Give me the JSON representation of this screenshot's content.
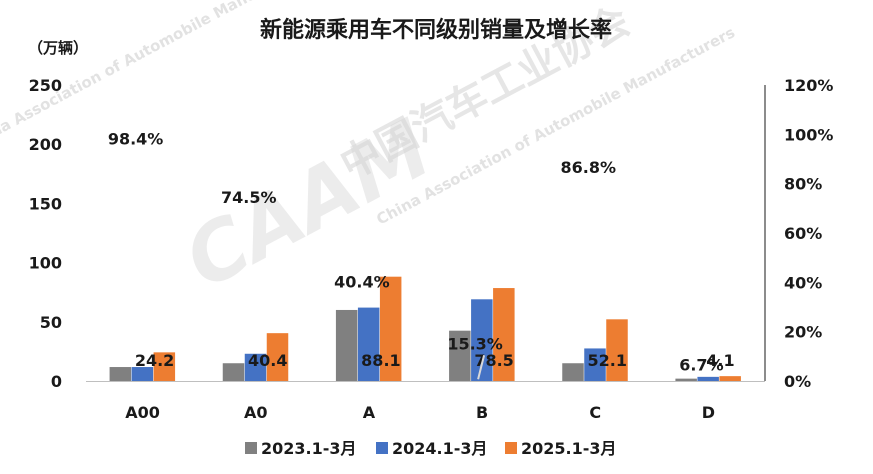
{
  "chart_data": {
    "type": "bar",
    "title": "新能源乘用车不同级别销量及增长率",
    "y_unit": "（万辆）",
    "categories": [
      "A00",
      "A0",
      "A",
      "B",
      "C",
      "D"
    ],
    "series": [
      {
        "name": "2023.1-3月",
        "color": "#808080",
        "values": [
          11.8,
          15.0,
          60.0,
          42.5,
          15.0,
          2.0
        ]
      },
      {
        "name": "2024.1-3月",
        "color": "#4472C4",
        "values": [
          11.8,
          23.0,
          62.0,
          69.0,
          27.5,
          3.5
        ]
      },
      {
        "name": "2025.1-3月",
        "color": "#ED7D31",
        "values": [
          24.2,
          40.4,
          88.1,
          78.5,
          52.1,
          4.1
        ]
      }
    ],
    "data_labels": [
      "24.2",
      "40.4",
      "88.1",
      "78.5",
      "52.1",
      "4.1"
    ],
    "growth_rate": [
      98.4,
      74.5,
      40.4,
      15.3,
      86.8,
      6.7
    ],
    "growth_labels": [
      "98.4%",
      "74.5%",
      "40.4%",
      "15.3%",
      "86.8%",
      "6.7%"
    ],
    "ylim_left": [
      0,
      250
    ],
    "left_ticks": [
      "250",
      "200",
      "150",
      "100",
      "50",
      "0"
    ],
    "left_tick_values": [
      250,
      200,
      150,
      100,
      50,
      0
    ],
    "ylim_right": [
      0,
      120
    ],
    "right_ticks": [
      "120%",
      "100%",
      "80%",
      "60%",
      "40%",
      "20%",
      "0%"
    ],
    "right_tick_values": [
      120,
      100,
      80,
      60,
      40,
      20,
      0
    ],
    "legend_position": "bottom",
    "grid": false
  },
  "watermark": {
    "cn": "中国汽车工业协会",
    "en": "China Association of Automobile Manufacturers",
    "logo": "CAAM"
  }
}
